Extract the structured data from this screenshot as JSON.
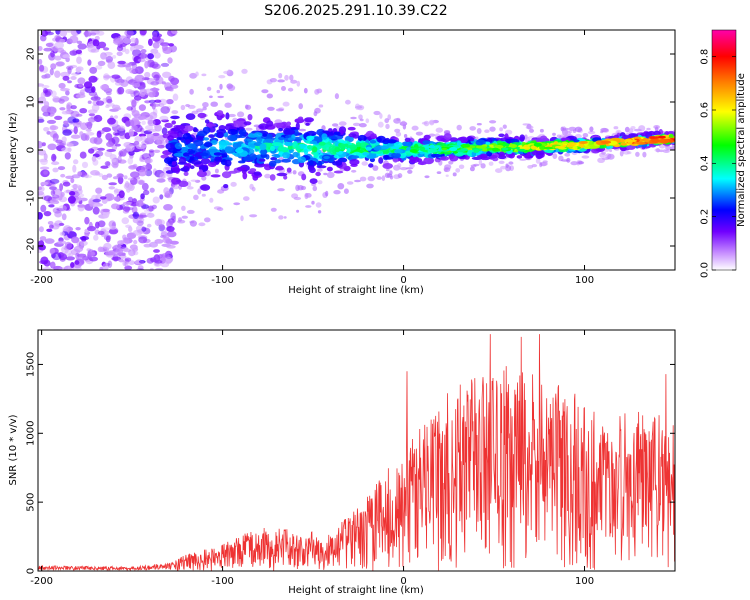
{
  "figure": {
    "title": "S206.2025.291.10.39.C22"
  },
  "chart_data": [
    {
      "type": "heatmap",
      "title": "S206.2025.291.10.39.C22",
      "xlabel": "Height of straight line (km)",
      "ylabel": "Frequency (Hz)",
      "xlim": [
        -202,
        150
      ],
      "ylim": [
        -25,
        25
      ],
      "x_ticks": [
        -200,
        -100,
        0,
        100
      ],
      "y_ticks": [
        -20,
        -10,
        0,
        10,
        20
      ],
      "x_tick_labels": [
        "-200",
        "-100",
        "0",
        "100"
      ],
      "y_tick_labels": [
        "-20",
        "-10",
        "0",
        "10",
        "20"
      ],
      "colorbar": {
        "label": "Normalized spectral amplitude",
        "range": [
          0,
          0.9
        ],
        "ticks": [
          0,
          0.2,
          0.4,
          0.6,
          0.8
        ],
        "tick_labels": [
          "0.0",
          "0.2",
          "0.4",
          "0.6",
          "0.8"
        ],
        "colormap": [
          "#ffffff",
          "#c890ff",
          "#7000ff",
          "#0000ff",
          "#00ffff",
          "#00ff00",
          "#ffff00",
          "#ff8000",
          "#ff0000",
          "#ff00aa"
        ]
      },
      "band_center_hz": [
        {
          "x": -125,
          "y": 0
        },
        {
          "x": -100,
          "y": 1
        },
        {
          "x": -50,
          "y": 0.5
        },
        {
          "x": 0,
          "y": 0
        },
        {
          "x": 50,
          "y": 0.5
        },
        {
          "x": 100,
          "y": 1
        },
        {
          "x": 150,
          "y": 2.5
        }
      ],
      "band_halfwidth_hz": [
        {
          "x": -125,
          "y": 9
        },
        {
          "x": -100,
          "y": 9
        },
        {
          "x": -50,
          "y": 8
        },
        {
          "x": -25,
          "y": 5
        },
        {
          "x": 0,
          "y": 3.5
        },
        {
          "x": 50,
          "y": 3
        },
        {
          "x": 100,
          "y": 2
        },
        {
          "x": 150,
          "y": 1.5
        }
      ],
      "noise_region_km": [
        -202,
        -130
      ]
    },
    {
      "type": "line",
      "xlabel": "Height of straight line (km)",
      "ylabel": "SNR (10 * v/v)",
      "xlim": [
        -202,
        150
      ],
      "ylim": [
        0,
        1750
      ],
      "x_ticks": [
        -200,
        -100,
        0,
        100
      ],
      "y_ticks": [
        0,
        500,
        1000,
        1500
      ],
      "x_tick_labels": [
        "-200",
        "-100",
        "0",
        "100"
      ],
      "y_tick_labels": [
        "0",
        "500",
        "1000",
        "1500"
      ],
      "series": [
        {
          "name": "SNR",
          "color": "#ee3333",
          "envelope": [
            {
              "x": -202,
              "y": 40
            },
            {
              "x": -150,
              "y": 30
            },
            {
              "x": -130,
              "y": 60
            },
            {
              "x": -120,
              "y": 120
            },
            {
              "x": -100,
              "y": 200
            },
            {
              "x": -80,
              "y": 320
            },
            {
              "x": -60,
              "y": 300
            },
            {
              "x": -40,
              "y": 280
            },
            {
              "x": -20,
              "y": 550
            },
            {
              "x": 0,
              "y": 900
            },
            {
              "x": 20,
              "y": 1250
            },
            {
              "x": 40,
              "y": 1450
            },
            {
              "x": 60,
              "y": 1500
            },
            {
              "x": 80,
              "y": 1400
            },
            {
              "x": 100,
              "y": 1250
            },
            {
              "x": 120,
              "y": 1150
            },
            {
              "x": 150,
              "y": 1200
            }
          ],
          "peaks": [
            {
              "x": 2,
              "y": 1450
            },
            {
              "x": 48,
              "y": 1720
            },
            {
              "x": 65,
              "y": 1700
            },
            {
              "x": 75,
              "y": 1720
            },
            {
              "x": 145,
              "y": 1430
            }
          ]
        }
      ]
    }
  ]
}
